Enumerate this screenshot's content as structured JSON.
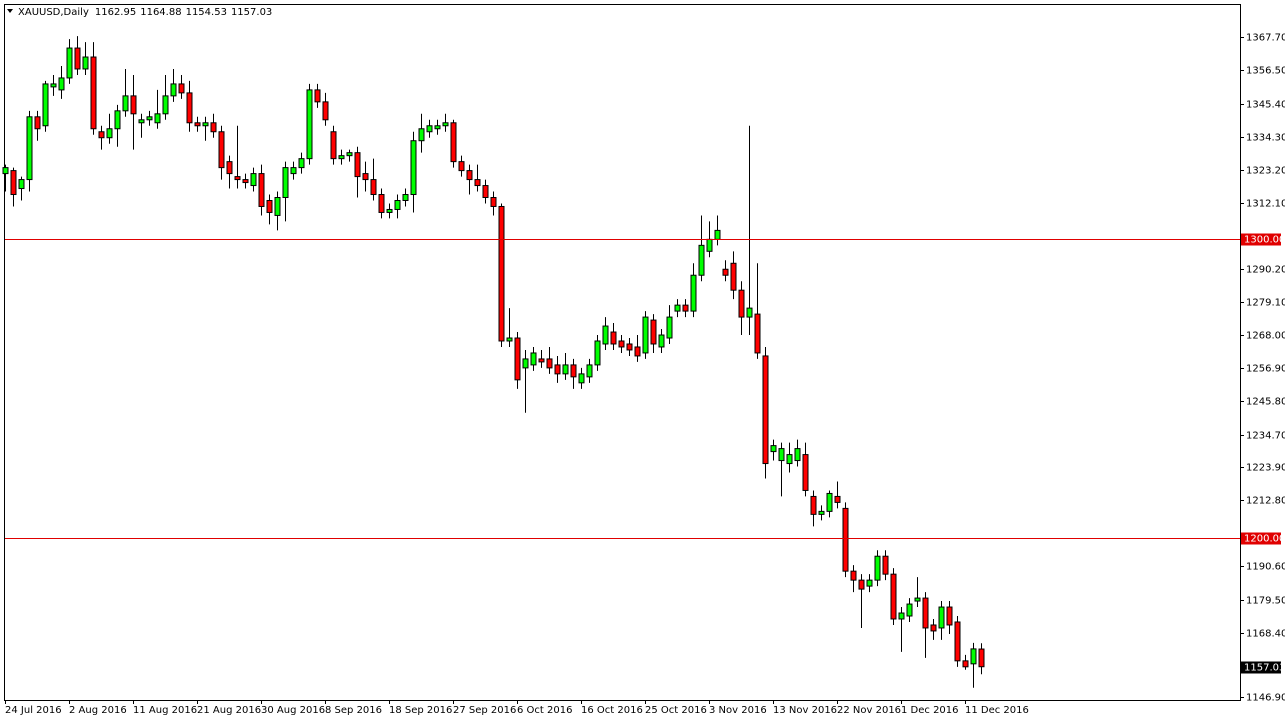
{
  "chart_data": {
    "type": "candlestick",
    "title": "XAUUSD,Daily",
    "categories": [
      "24 Jul 2016",
      null,
      null,
      null,
      null,
      null,
      null,
      null,
      "2 Aug 2016",
      null,
      null,
      null,
      null,
      null,
      null,
      null,
      "11 Aug 2016",
      null,
      null,
      null,
      null,
      null,
      null,
      null,
      "21 Aug 2016",
      null,
      null,
      null,
      null,
      null,
      null,
      null,
      "30 Aug 2016",
      null,
      null,
      null,
      null,
      null,
      null,
      null,
      "8 Sep 2016",
      null,
      null,
      null,
      null,
      null,
      null,
      null,
      "18 Sep 2016",
      null,
      null,
      null,
      null,
      null,
      null,
      null,
      "27 Sep 2016",
      null,
      null,
      null,
      null,
      null,
      null,
      null,
      "6 Oct 2016",
      null,
      null,
      null,
      null,
      null,
      null,
      null,
      "16 Oct 2016",
      null,
      null,
      null,
      null,
      null,
      null,
      null,
      "25 Oct 2016",
      null,
      null,
      null,
      null,
      null,
      null,
      null,
      "3 Nov 2016",
      null,
      null,
      null,
      null,
      null,
      null,
      null,
      "13 Nov 2016",
      null,
      null,
      null,
      null,
      null,
      null,
      null,
      "22 Nov 2016",
      null,
      null,
      null,
      null,
      null,
      null,
      null,
      "1 Dec 2016",
      null,
      null,
      null,
      null,
      null,
      null,
      null,
      "11 Dec 2016",
      null,
      null
    ],
    "open": [
      1322,
      1323,
      1317,
      1320,
      1341,
      1338,
      1351,
      1350,
      1354,
      1364,
      1357,
      1361,
      1336,
      1334,
      1337,
      1343,
      1348,
      1339,
      1340,
      1339,
      1342,
      1348,
      1352,
      1349,
      1339,
      1338,
      1339,
      1336,
      1326,
      1321,
      1320,
      1318,
      1322,
      1313,
      1308,
      1314,
      1322,
      1324,
      1327,
      1350,
      1346,
      1336,
      1327,
      1328,
      1329,
      1322,
      1320,
      1315,
      1309,
      1310,
      1313,
      1315,
      1333,
      1336,
      1337,
      1338,
      1339,
      1326,
      1323,
      1320,
      1318,
      1314,
      1311,
      1266,
      1267,
      1257,
      1258,
      1260,
      1260,
      1258,
      1255,
      1258,
      1252,
      1254,
      1258,
      1265,
      1269,
      1266,
      1265,
      1264,
      1262,
      1273,
      1264,
      1267,
      1276,
      1278,
      1276,
      1288,
      1296,
      1300,
      1290,
      1292,
      1283,
      1274,
      1275,
      1261,
      1229,
      1226,
      1225,
      1226,
      1228,
      1214,
      1208,
      1209,
      1214,
      1210,
      1189,
      1186,
      1184,
      1186,
      1194,
      1188,
      1173,
      1174,
      1179,
      1180,
      1171,
      1170,
      1177,
      1172,
      1159,
      1158,
      1162.95
    ],
    "high": [
      1325,
      1324,
      1321,
      1343,
      1343,
      1353,
      1355,
      1358,
      1367,
      1368,
      1366,
      1366,
      1338,
      1342,
      1345,
      1357,
      1355,
      1342,
      1343,
      1350,
      1355,
      1357,
      1355,
      1353,
      1341,
      1341,
      1342,
      1338,
      1328,
      1338,
      1322,
      1324,
      1325,
      1315,
      1316,
      1326,
      1326,
      1329,
      1352,
      1352,
      1349,
      1338,
      1330,
      1330,
      1331,
      1326,
      1327,
      1317,
      1312,
      1315,
      1317,
      1336,
      1342,
      1340,
      1340,
      1342,
      1340,
      1328,
      1325,
      1325,
      1320,
      1316,
      1312,
      1277,
      1269,
      1263,
      1264,
      1263,
      1264,
      1261,
      1262,
      1260,
      1257,
      1260,
      1268,
      1274,
      1272,
      1268,
      1267,
      1268,
      1276,
      1275,
      1270,
      1278,
      1280,
      1280,
      1292,
      1308,
      1306,
      1308,
      1293,
      1296,
      1286,
      1338,
      1292,
      1264,
      1233,
      1232,
      1232,
      1233,
      1232,
      1216,
      1211,
      1216,
      1219,
      1212,
      1191,
      1188,
      1188,
      1196,
      1196,
      1190,
      1177,
      1180,
      1187,
      1182,
      1173,
      1179,
      1179,
      1174,
      1161,
      1165,
      1164.88
    ],
    "low": [
      1316,
      1311,
      1313,
      1316,
      1333,
      1336,
      1348,
      1347,
      1352,
      1355,
      1355,
      1335,
      1330,
      1332,
      1331,
      1341,
      1330,
      1334,
      1338,
      1337,
      1340,
      1346,
      1347,
      1336,
      1336,
      1333,
      1334,
      1320,
      1317,
      1317,
      1317,
      1316,
      1308,
      1305,
      1303,
      1306,
      1320,
      1322,
      1325,
      1344,
      1338,
      1325,
      1325,
      1326,
      1314,
      1316,
      1313,
      1307,
      1307,
      1307,
      1311,
      1309,
      1329,
      1334,
      1335,
      1336,
      1324,
      1321,
      1315,
      1316,
      1312,
      1308,
      1264,
      1264,
      1250,
      1242,
      1256,
      1257,
      1255,
      1252,
      1253,
      1250,
      1250,
      1252,
      1256,
      1263,
      1263,
      1262,
      1261,
      1259,
      1260,
      1262,
      1262,
      1265,
      1274,
      1274,
      1274,
      1286,
      1294,
      1298,
      1286,
      1280,
      1268,
      1268,
      1260,
      1220,
      1226,
      1214,
      1222,
      1224,
      1214,
      1204,
      1206,
      1207,
      1210,
      1187,
      1182,
      1170,
      1182,
      1184,
      1186,
      1171,
      1162,
      1172,
      1177,
      1160,
      1166,
      1166,
      1168,
      1157,
      1156,
      1150,
      1154.53
    ],
    "close": [
      1324,
      1315,
      1320,
      1341,
      1337,
      1352,
      1352,
      1354,
      1364,
      1357,
      1361,
      1337,
      1334,
      1337,
      1343,
      1348,
      1342,
      1340,
      1341,
      1342,
      1348,
      1352,
      1349,
      1339,
      1338,
      1339,
      1336,
      1324,
      1322,
      1320,
      1319,
      1322,
      1311,
      1309,
      1314,
      1324,
      1324,
      1327,
      1350,
      1346,
      1340,
      1327,
      1328,
      1329,
      1321,
      1320,
      1315,
      1309,
      1310,
      1313,
      1315,
      1333,
      1337,
      1338,
      1338,
      1339,
      1326,
      1323,
      1320,
      1318,
      1314,
      1311,
      1266,
      1267,
      1253,
      1260,
      1262,
      1259,
      1257,
      1255,
      1258,
      1254,
      1255,
      1258,
      1266,
      1271,
      1265,
      1264,
      1263,
      1261,
      1274,
      1265,
      1268,
      1274,
      1278,
      1276,
      1288,
      1298,
      1300,
      1303,
      1288,
      1283,
      1274,
      1277,
      1262,
      1225,
      1231,
      1230,
      1228,
      1230,
      1216,
      1208,
      1209,
      1215,
      1212,
      1189,
      1186,
      1183,
      1186,
      1194,
      1188,
      1173,
      1175,
      1178,
      1180,
      1170,
      1169,
      1177,
      1171,
      1159,
      1157,
      1163,
      1157.03
    ],
    "up_color": "#00ff00",
    "down_color": "#ff0000",
    "ylim": [
      1145.9,
      1378.4
    ],
    "yticks": [
      {
        "value": 1367.7,
        "label": "1367.70"
      },
      {
        "value": 1356.5,
        "label": "1356.50"
      },
      {
        "value": 1345.4,
        "label": "1345.40"
      },
      {
        "value": 1334.3,
        "label": "1334.30"
      },
      {
        "value": 1323.2,
        "label": "1323.20"
      },
      {
        "value": 1312.1,
        "label": "1312.10"
      },
      {
        "value": 1290.2,
        "label": "1290.20"
      },
      {
        "value": 1279.1,
        "label": "1279.10"
      },
      {
        "value": 1268,
        "label": "1268.00"
      },
      {
        "value": 1256.9,
        "label": "1256.90"
      },
      {
        "value": 1245.8,
        "label": "1245.80"
      },
      {
        "value": 1234.7,
        "label": "1234.70"
      },
      {
        "value": 1223.9,
        "label": "1223.90"
      },
      {
        "value": 1212.8,
        "label": "1212.80"
      },
      {
        "value": 1190.6,
        "label": "1190.60"
      },
      {
        "value": 1179.5,
        "label": "1179.50"
      },
      {
        "value": 1168.4,
        "label": "1168.40"
      },
      {
        "value": 1146.9,
        "label": "1146.90"
      }
    ],
    "hlines": [
      {
        "value": 1300,
        "label": "1300.00",
        "color": "#e00000"
      },
      {
        "value": 1200,
        "label": "1200.00",
        "color": "#e00000"
      }
    ]
  }
}
